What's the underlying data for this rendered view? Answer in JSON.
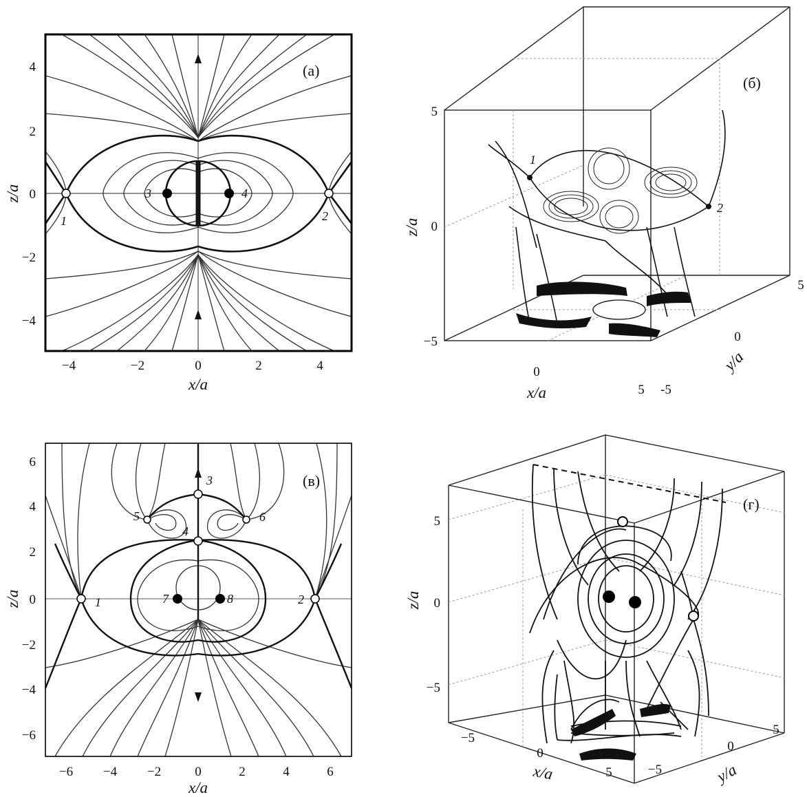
{
  "figure": {
    "panels": {
      "a": {
        "label": "(а)",
        "xlabel": "x/a",
        "ylabel": "z/a",
        "xticks": [
          "−4",
          "−2",
          "0",
          "2",
          "4"
        ],
        "zticks": [
          "4",
          "2",
          "0",
          "−2",
          "−4"
        ],
        "points": [
          "1",
          "2",
          "3",
          "4"
        ]
      },
      "b": {
        "label": "(б)",
        "xlabel": "x/a",
        "ylabel": "y/a",
        "zlabel": "z/a",
        "xticks": [
          "0",
          "5"
        ],
        "yticks": [
          "-5",
          "0",
          "5"
        ],
        "zticks": [
          "5",
          "0",
          "−5"
        ],
        "points": [
          "1",
          "2"
        ]
      },
      "c": {
        "label": "(в)",
        "xlabel": "x/a",
        "ylabel": "z/a",
        "xticks": [
          "−6",
          "−4",
          "−2",
          "0",
          "2",
          "4",
          "6"
        ],
        "zticks": [
          "6",
          "4",
          "2",
          "0",
          "−2",
          "−4",
          "−6"
        ],
        "points": [
          "1",
          "2",
          "3",
          "4",
          "5",
          "6",
          "7",
          "8"
        ]
      },
      "d": {
        "label": "(г)",
        "xlabel": "x/a",
        "ylabel": "y/a",
        "zlabel": "z/a",
        "xticks": [
          "−5",
          "0",
          "5"
        ],
        "yticks": [
          "−5",
          "0",
          "5"
        ],
        "zticks": [
          "5",
          "0",
          "−5"
        ]
      }
    }
  }
}
